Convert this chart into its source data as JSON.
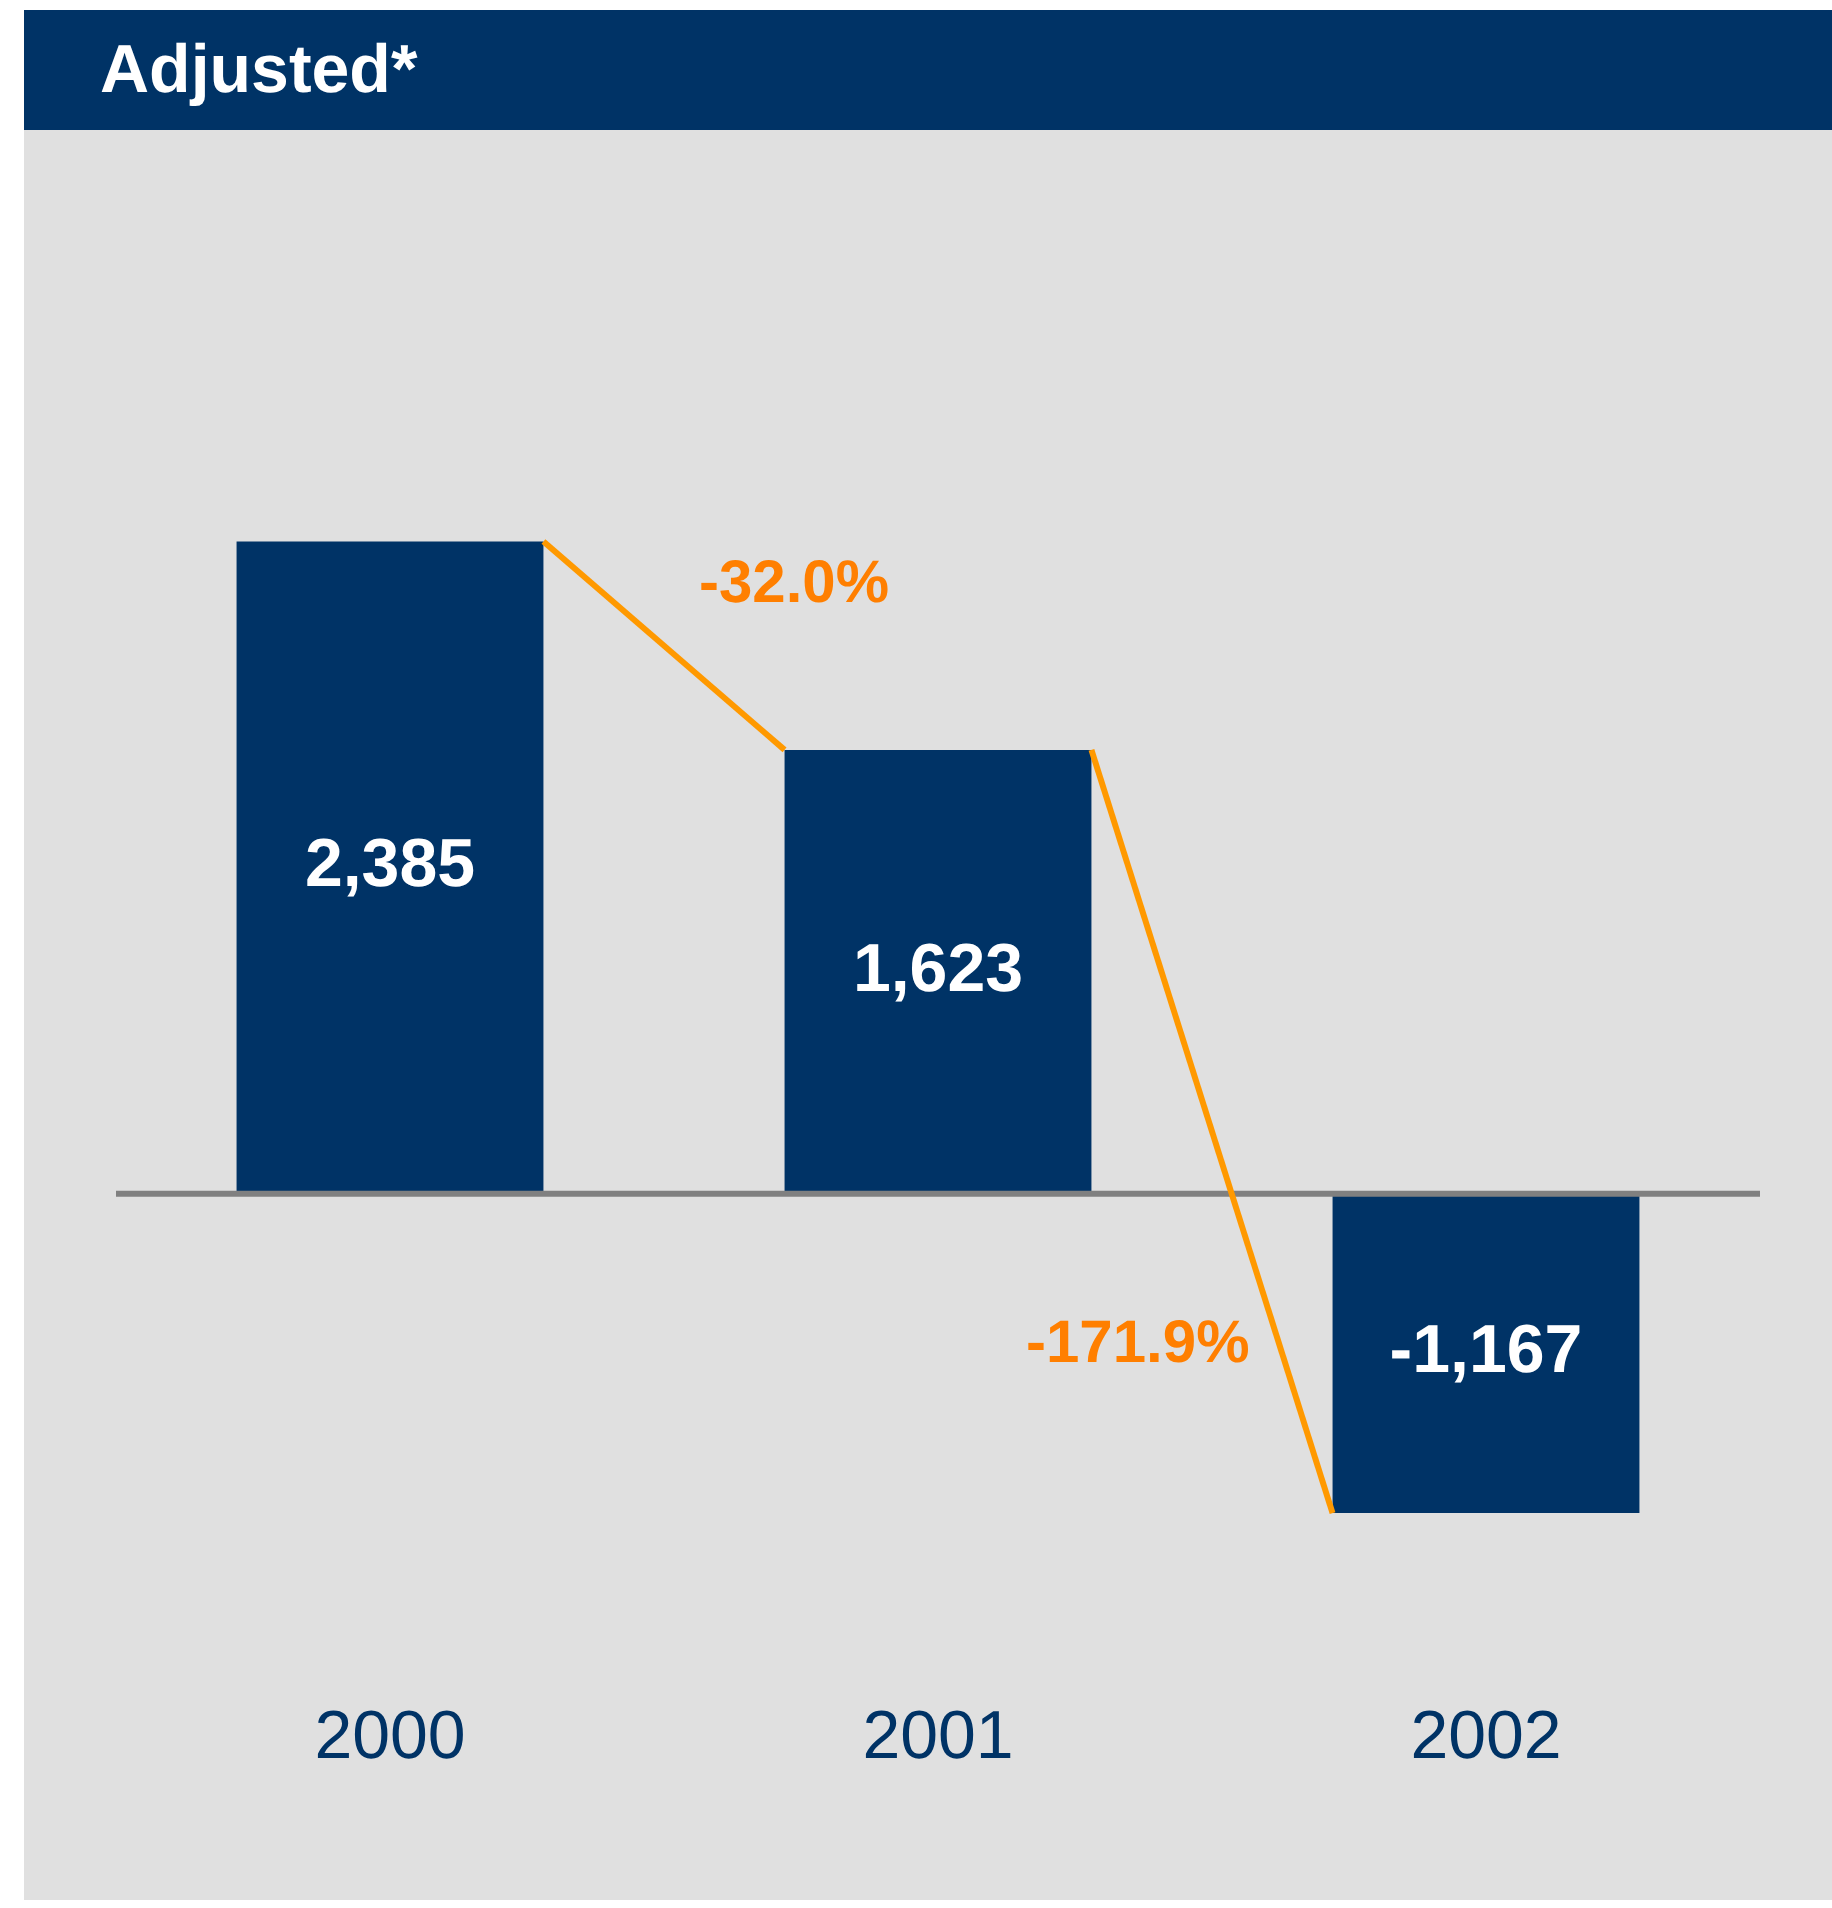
{
  "chart_data": {
    "type": "bar",
    "title": "Adjusted*",
    "categories": [
      "2000",
      "2001",
      "2002"
    ],
    "values": [
      2385,
      1623,
      -1167
    ],
    "color": "#003366",
    "value_labels": [
      "2,385",
      "1,623",
      "-1,167"
    ],
    "tick_labels": "x",
    "grid": false,
    "legend": false,
    "annotations": [
      "-32.0%",
      "-171.9%"
    ]
  }
}
